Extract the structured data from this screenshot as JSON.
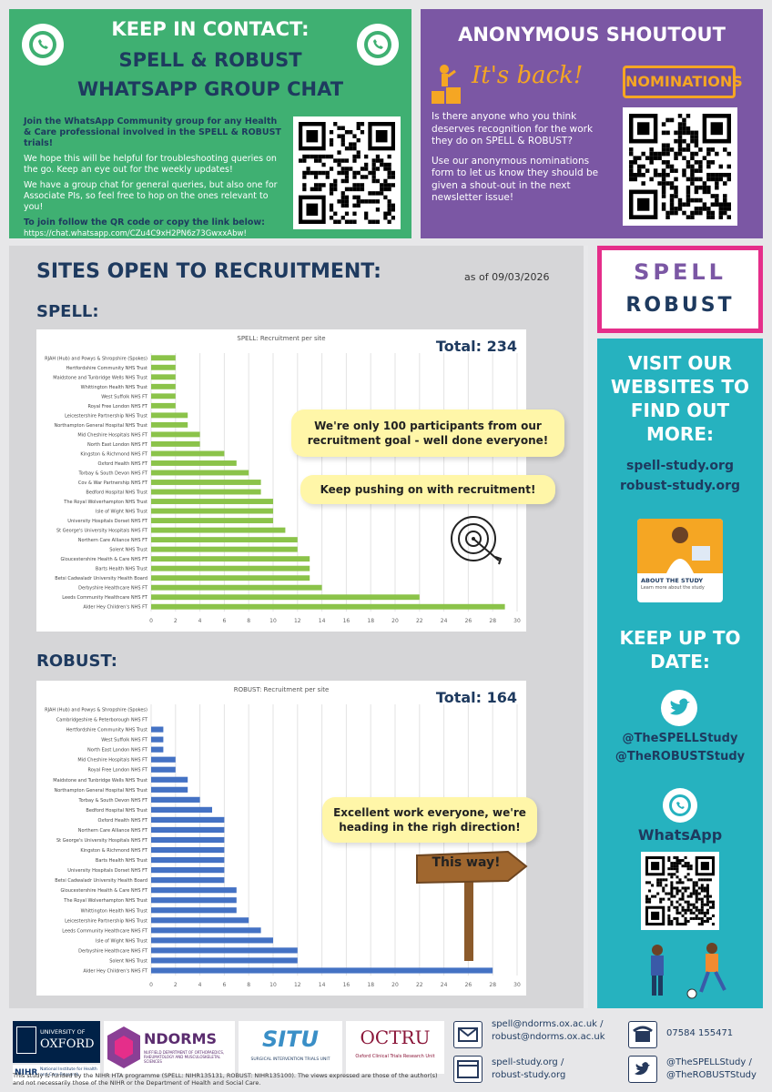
{
  "contact": {
    "heading1": "KEEP IN CONTACT:",
    "heading2": "SPELL & ROBUST",
    "heading3": "WHATSAPP GROUP CHAT",
    "p1": "Join the WhatsApp Community group for any Health & Care professional involved in the SPELL & ROBUST trials!",
    "p2": "We hope this will be helpful for troubleshooting queries on the go. Keep an eye out for the weekly updates!",
    "p3": "We have a group chat for general queries, but also one for Associate PIs, so feel free to hop on the ones relevant to you!",
    "p4_title": "To join follow the QR code or copy the link below:",
    "link": "https://chat.whatsapp.com/CZu4C9xH2PN6z73GwxxAbw!"
  },
  "shoutout": {
    "heading": "ANONYMOUS SHOUTOUT",
    "back": "It's back!",
    "nominations": "NOMINATIONS",
    "p1": "Is there anyone who you think deserves recognition for the work they do on SPELL & ROBUST?",
    "p2": "Use our anonymous nominations form to let us know they should be given a shout-out in the next newsletter issue!"
  },
  "sites": {
    "heading": "SITES OPEN TO RECRUITMENT:",
    "asof": "as of 09/03/2026",
    "spell_label": "SPELL:",
    "robust_label": "ROBUST:",
    "spell_callout1": "We're only 100 participants from our recruitment goal - well done everyone!",
    "spell_callout2": "Keep pushing on with recruitment!",
    "robust_callout": "Excellent work everyone, we're heading in the righ direction!",
    "sign": "This way!"
  },
  "logo": {
    "line1": "SPELL",
    "line2": "ROBUST"
  },
  "sidebar": {
    "visit": "VISIT OUR WEBSITES TO FIND OUT MORE:",
    "site1": "spell-study.org",
    "site2": "robust-study.org",
    "about_title": "ABOUT THE STUDY",
    "about_sub": "Learn more about the study",
    "keep": "KEEP UP TO DATE:",
    "tw1": "@TheSPELLStudy",
    "tw2": "@TheROBUSTStudy",
    "wa": "WhatsApp"
  },
  "footer": {
    "oxford1": "UNIVERSITY OF",
    "oxford2": "OXFORD",
    "nihr": "NIHR",
    "nihr_sub": "National Institute for Health and Care Research",
    "ndorms": "NDORMS",
    "ndorms_sub": "NUFFIELD DEPARTMENT OF ORTHOPAEDICS, RHEUMATOLOGY AND MUSCULOSKELETAL SCIENCES",
    "situ": "SITU",
    "situ_sub": "SURGICAL INTERVENTION TRIALS UNIT",
    "octru": "OCTRU",
    "octru_sub": "Oxford Clinical Trials Research Unit",
    "funding": "This study is funded by the NIHR HTA programme (SPELL: NIHR135131, ROBUST: NIHR135100). The views expressed are those of the author(s) and not necessarily those of the NIHR or the Department of Health and Social Care.",
    "email1": "spell@ndorms.ox.ac.uk /",
    "email2": "robust@ndorms.ox.ac.uk",
    "web1": "spell-study.org /",
    "web2": "robust-study.org",
    "phone": "07584 155471",
    "tw1": "@TheSPELLStudy /",
    "tw2": "@TheROBUSTStudy"
  },
  "colors": {
    "green": "#3fb072",
    "purple": "#7b57a4",
    "teal": "#26b2bf",
    "spell_bar": "#8bc34a",
    "robust_bar": "#4472c4",
    "navy": "#1e3a5f"
  },
  "chart_data": [
    {
      "type": "bar",
      "orientation": "horizontal",
      "title": "SPELL: Recruitment per site",
      "total_label": "Total: 234",
      "xlim": [
        0,
        30
      ],
      "xticks": [
        0,
        2,
        4,
        6,
        8,
        10,
        12,
        14,
        16,
        18,
        20,
        22,
        24,
        26,
        28,
        30
      ],
      "categories": [
        "RJAH (Hub) and Powys & Shropshire (Spokes)",
        "Hertfordshire Community NHS Trust",
        "Maidstone and Tunbridge Wells NHS Trust",
        "Whittington Health NHS Trust",
        "West Suffolk NHS FT",
        "Royal Free London NHS FT",
        "Leicestershire Partnership NHS Trust",
        "Northampton General Hospital NHS Trust",
        "Mid Cheshire Hospitals NHS FT",
        "North East London NHS FT",
        "Kingston & Richmond NHS FT",
        "Oxford Health NHS FT",
        "Torbay & South Devon NHS FT",
        "Cov & War Partnership NHS FT",
        "Bedford Hospital NHS Trust",
        "The Royal Wolverhampton NHS Trust",
        "Isle of Wight NHS Trust",
        "University Hospitals Dorset NHS FT",
        "St George's University Hospitals NHS FT",
        "Northern Care Alliance NHS FT",
        "Solent NHS Trust",
        "Gloucestershire Health & Care NHS FT",
        "Barts Health NHS Trust",
        "Betsi Cadwaladr University Health Board",
        "Derbyshire Healthcare NHS FT",
        "Leeds Community Healthcare NHS FT",
        "Alder Hey Children's NHS FT"
      ],
      "values": [
        2,
        2,
        2,
        2,
        2,
        2,
        3,
        3,
        4,
        4,
        6,
        7,
        8,
        9,
        9,
        10,
        10,
        10,
        11,
        12,
        12,
        13,
        13,
        13,
        14,
        22,
        29
      ],
      "color": "#8bc34a"
    },
    {
      "type": "bar",
      "orientation": "horizontal",
      "title": "ROBUST: Recruitment per site",
      "total_label": "Total: 164",
      "xlim": [
        0,
        30
      ],
      "xticks": [
        0,
        2,
        4,
        6,
        8,
        10,
        12,
        14,
        16,
        18,
        20,
        22,
        24,
        26,
        28,
        30
      ],
      "categories": [
        "RJAH (Hub) and Powys & Shropshire (Spokes)",
        "Cambridgeshire & Peterborough NHS FT",
        "Hertfordshire Community NHS Trust",
        "West Suffolk NHS FT",
        "North East London NHS FT",
        "Mid Cheshire Hospitals NHS FT",
        "Royal Free London NHS FT",
        "Maidstone and Tunbridge Wells NHS Trust",
        "Northampton General Hospital NHS Trust",
        "Torbay & South Devon NHS FT",
        "Bedford Hospital NHS Trust",
        "Oxford Health NHS FT",
        "Northern Care Alliance NHS FT",
        "St George's University Hospitals NHS FT",
        "Kingston & Richmond NHS FT",
        "Barts Health NHS Trust",
        "University Hospitals Dorset NHS FT",
        "Betsi Cadwaladr University Health Board",
        "Gloucestershire Health & Care NHS FT",
        "The Royal Wolverhampton NHS Trust",
        "Whittington Health NHS Trust",
        "Leicestershire Partnership NHS Trust",
        "Leeds Community Healthcare NHS FT",
        "Isle of Wight NHS Trust",
        "Derbyshire Healthcare NHS FT",
        "Solent NHS Trust",
        "Alder Hey Children's NHS FT"
      ],
      "values": [
        0,
        0,
        1,
        1,
        1,
        2,
        2,
        3,
        3,
        4,
        5,
        6,
        6,
        6,
        6,
        6,
        6,
        6,
        7,
        7,
        7,
        8,
        9,
        10,
        12,
        12,
        28
      ],
      "color": "#4472c4"
    }
  ]
}
